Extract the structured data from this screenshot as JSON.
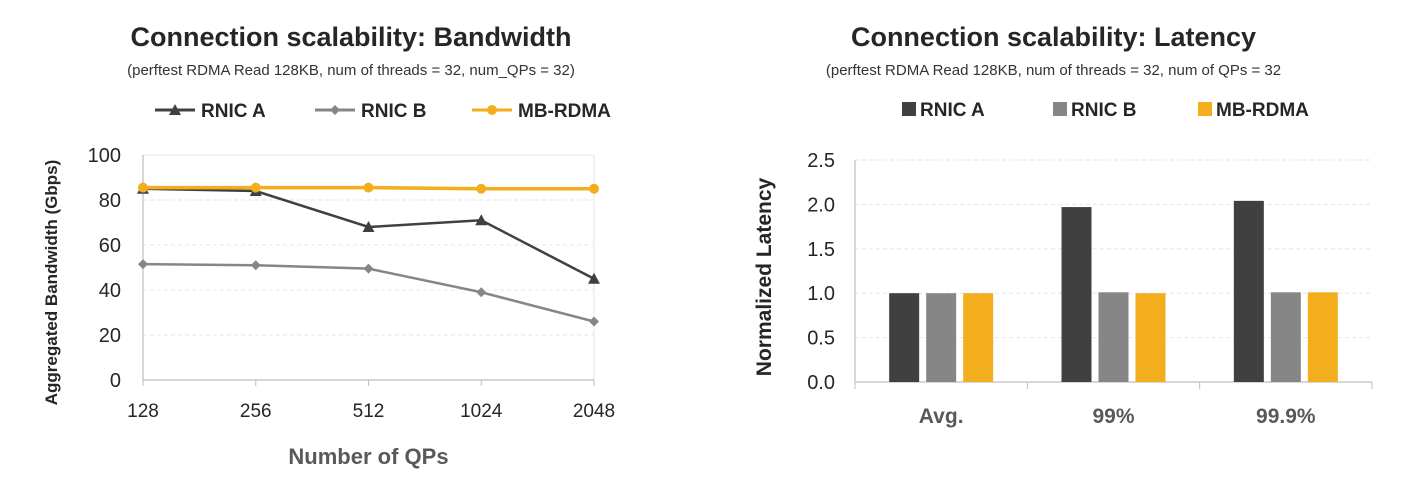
{
  "colors": {
    "rnic_a": "#404040",
    "rnic_b": "#868686",
    "mb_rdma": "#f2ae1c",
    "axis": "#bfbfbf",
    "grid": "#e6e6e6",
    "text": "#262626",
    "label": "#595959"
  },
  "chart_data": [
    {
      "type": "line",
      "title": "Connection scalability: Bandwidth",
      "subtitle": "(perftest RDMA Read 128KB, num of threads = 32, num_QPs = 32)",
      "xlabel": "Number of QPs",
      "ylabel": "Aggregated Bandwidth (Gbps)",
      "x": [
        "128",
        "256",
        "512",
        "1024",
        "2048"
      ],
      "ylim": [
        0,
        100
      ],
      "yticks": [
        "0",
        "20",
        "40",
        "60",
        "80",
        "100"
      ],
      "grid": true,
      "legend_position": "top",
      "series": [
        {
          "name": "RNIC A",
          "values": [
            85,
            84,
            68,
            71,
            45
          ],
          "marker": "triangle"
        },
        {
          "name": "RNIC B",
          "values": [
            51.5,
            51,
            49.5,
            39,
            26
          ],
          "marker": "diamond"
        },
        {
          "name": "MB-RDMA",
          "values": [
            85.5,
            85.5,
            85.5,
            85,
            85
          ],
          "marker": "circle"
        }
      ]
    },
    {
      "type": "bar",
      "title": "Connection scalability: Latency",
      "subtitle": "(perftest RDMA Read 128KB, num of threads = 32, num of QPs = 32",
      "xlabel": "",
      "ylabel": "Normalized Latency",
      "categories": [
        "Avg.",
        "99%",
        "99.9%"
      ],
      "ylim": [
        0,
        2.5
      ],
      "yticks": [
        "0.0",
        "0.5",
        "1.0",
        "1.5",
        "2.0",
        "2.5"
      ],
      "grid": true,
      "legend_position": "top",
      "series": [
        {
          "name": "RNIC A",
          "values": [
            1.0,
            1.97,
            2.04
          ]
        },
        {
          "name": "RNIC B",
          "values": [
            1.0,
            1.01,
            1.01
          ]
        },
        {
          "name": "MB-RDMA",
          "values": [
            1.0,
            1.0,
            1.01
          ]
        }
      ]
    }
  ]
}
